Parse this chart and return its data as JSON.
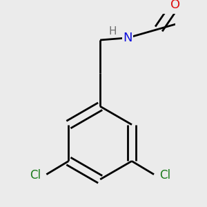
{
  "background_color": "#ebebeb",
  "bond_color": "#000000",
  "bond_width": 2.0,
  "atom_colors": {
    "N": "#1010dd",
    "O": "#dd1010",
    "Cl": "#1a7a1a",
    "H": "#707070"
  },
  "font_size_atom": 13,
  "font_size_h": 11,
  "font_size_cl": 12
}
